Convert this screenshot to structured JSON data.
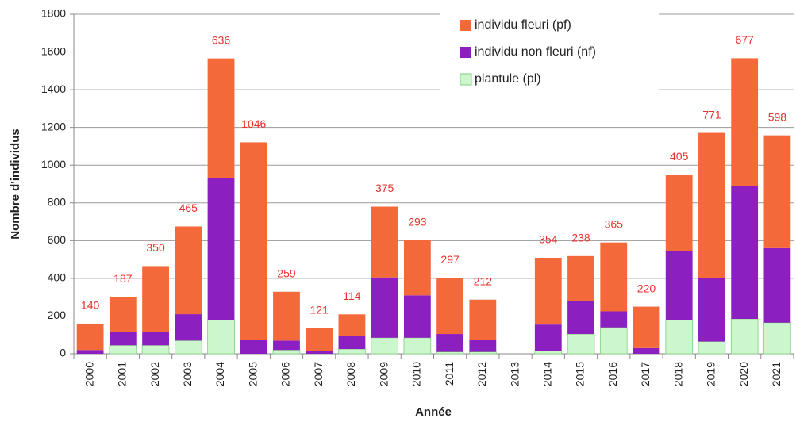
{
  "chart_data": {
    "type": "stacked_bar",
    "y_label": "Nombre d'individus",
    "x_label": "Année",
    "categories": [
      "2000",
      "2001",
      "2002",
      "2003",
      "2004",
      "2005",
      "2006",
      "2007",
      "2008",
      "2009",
      "2010",
      "2011",
      "2012",
      "2013",
      "2014",
      "2015",
      "2016",
      "2017",
      "2018",
      "2019",
      "2020",
      "2021"
    ],
    "series": [
      {
        "name": "plantule (pl)",
        "color": "#ccf7cc",
        "values": [
          0,
          45,
          45,
          70,
          180,
          0,
          20,
          0,
          25,
          85,
          85,
          10,
          10,
          null,
          15,
          105,
          140,
          0,
          180,
          65,
          185,
          165
        ]
      },
      {
        "name": "individu non fleuri (nf)",
        "color": "#8c1fbf",
        "values": [
          20,
          70,
          70,
          140,
          750,
          75,
          50,
          15,
          70,
          320,
          225,
          95,
          65,
          null,
          140,
          175,
          85,
          30,
          365,
          335,
          705,
          395
        ]
      },
      {
        "name": "individu fleuri (pf)",
        "color": "#f4693a",
        "values": [
          140,
          187,
          350,
          465,
          636,
          1046,
          259,
          121,
          114,
          375,
          293,
          297,
          212,
          null,
          354,
          238,
          365,
          220,
          405,
          771,
          677,
          598
        ]
      }
    ],
    "labeled_series": 2,
    "ylim": [
      0,
      1800
    ],
    "yticks": [
      0,
      200,
      400,
      600,
      800,
      1000,
      1200,
      1400,
      1600,
      1800
    ],
    "grid": true,
    "legend": "top-right"
  }
}
